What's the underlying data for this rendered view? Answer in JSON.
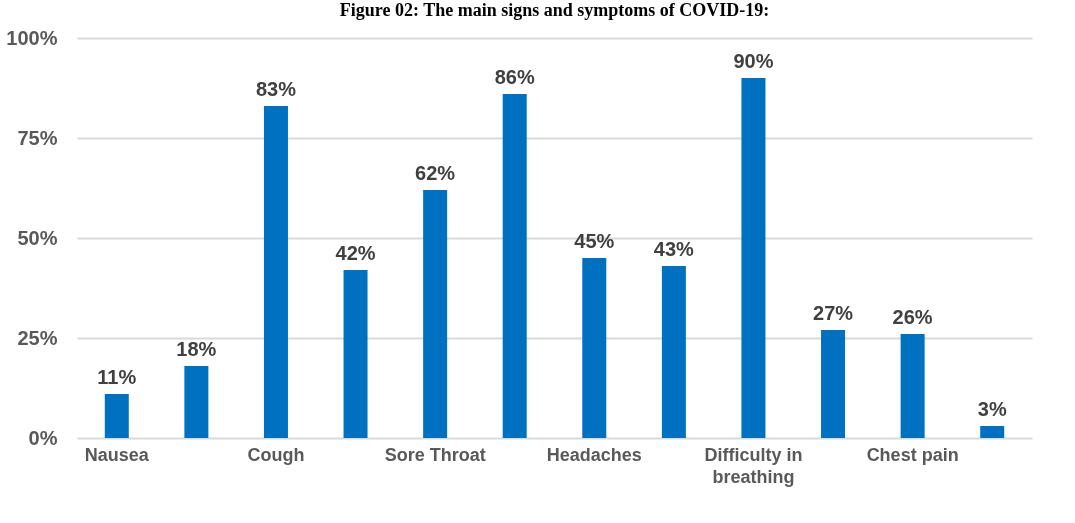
{
  "chart_data": {
    "type": "bar",
    "title": "Figure 02: The main signs and symptoms of COVID-19:",
    "categories": [
      "Nausea",
      null,
      "Cough",
      null,
      "Sore Throat",
      null,
      "Headaches",
      null,
      "Difficulty in breathing",
      null,
      "Chest pain",
      null
    ],
    "values": [
      11,
      18,
      83,
      42,
      62,
      86,
      45,
      43,
      90,
      27,
      26,
      3
    ],
    "value_labels": [
      "11%",
      "18%",
      "83%",
      "42%",
      "62%",
      "86%",
      "45%",
      "43%",
      "90%",
      "27%",
      "26%",
      "3%"
    ],
    "color": "#0070c0",
    "ylim": [
      0,
      100
    ],
    "yticks": [
      {
        "value": 0,
        "label": "0%"
      },
      {
        "value": 25,
        "label": "25%"
      },
      {
        "value": 50,
        "label": "50%"
      },
      {
        "value": 75,
        "label": "75%"
      },
      {
        "value": 100,
        "label": "100%"
      }
    ],
    "grid": "y"
  }
}
